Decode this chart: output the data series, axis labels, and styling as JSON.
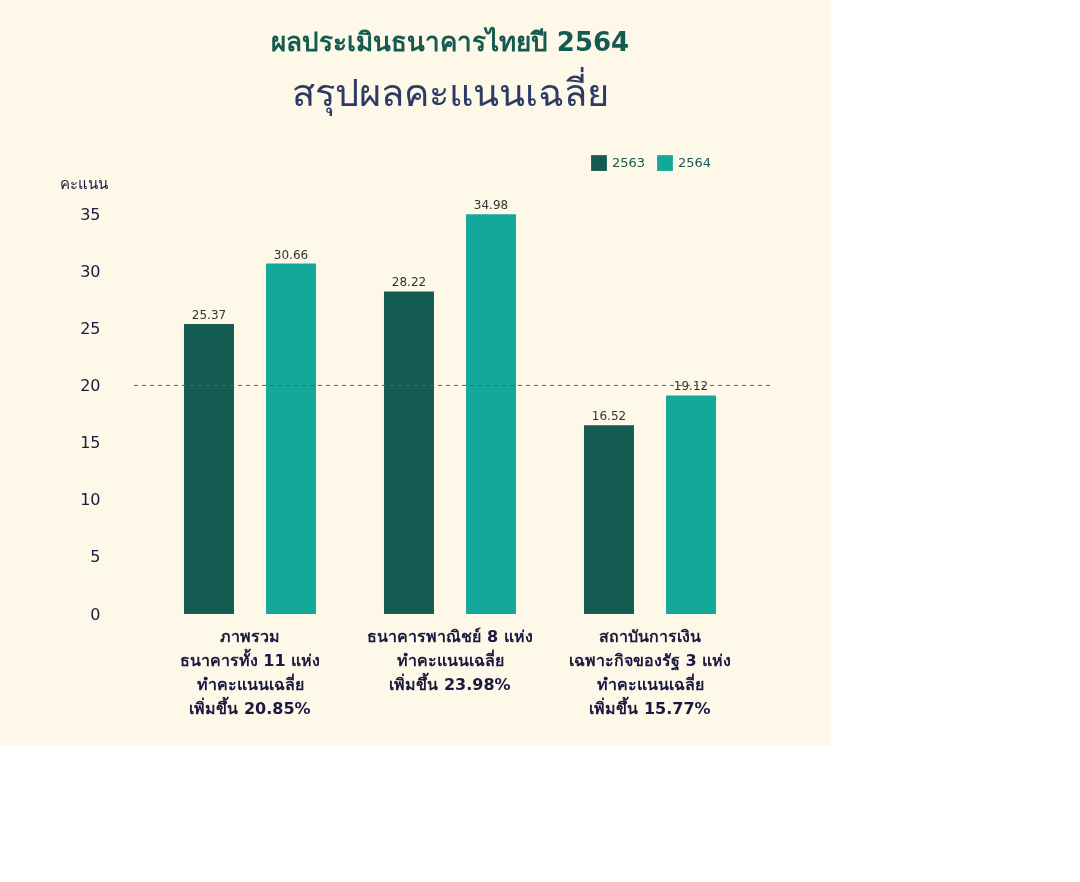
{
  "chart_data": {
    "type": "bar",
    "title": "ผลประเมินธนาคารไทยปี 2564",
    "subtitle": "สรุปผลคะแนนเฉลี่ย",
    "ylabel": "คะแนน",
    "categories": [
      "ภาพรวม\nธนาคารทั้ง 11 แห่ง\nทำคะแนนเฉลี่ย\nเพิ่มขึ้น 20.85%",
      "ธนาคารพาณิชย์ 8 แห่ง\nทำคะแนนเฉลี่ย\nเพิ่มขึ้น 23.98%",
      "สถาบันการเงิน\nเฉพาะกิจของรัฐ 3 แห่ง\nทำคะแนนเฉลี่ย\nเพิ่มขึ้น 15.77%"
    ],
    "series": [
      {
        "name": "2563",
        "color": "#145b51",
        "values": [
          25.37,
          28.22,
          16.52
        ]
      },
      {
        "name": "2564",
        "color": "#14a89a",
        "values": [
          30.66,
          34.98,
          19.12
        ]
      }
    ],
    "ylim": [
      0,
      35
    ],
    "yticks": [
      0,
      5,
      10,
      15,
      20,
      25,
      30,
      35
    ],
    "ref_lines": [
      {
        "axis": "y",
        "value": 20,
        "color": "#5a5a7a",
        "line_style": "dashed"
      }
    ],
    "data_labels": true,
    "grid": false,
    "legend": "top right"
  }
}
